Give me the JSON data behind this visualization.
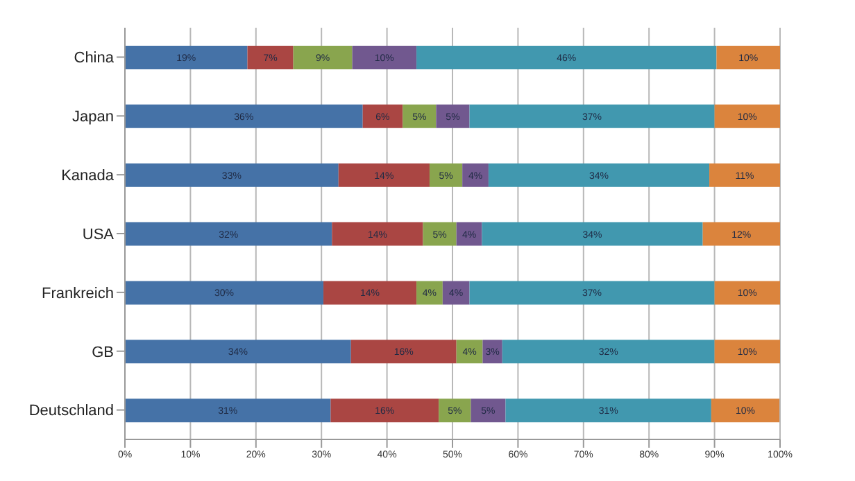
{
  "chart_data": {
    "type": "bar",
    "orientation": "horizontal",
    "stacked": true,
    "categories": [
      "China",
      "Japan",
      "Kanada",
      "USA",
      "Frankreich",
      "GB",
      "Deutschland"
    ],
    "series": [
      {
        "color": "#4572a7",
        "values": [
          18.7,
          36.3,
          32.6,
          31.6,
          30.3,
          34.5,
          31.4
        ],
        "value_labels": [
          "19%",
          "36%",
          "33%",
          "32%",
          "30%",
          "34%",
          "31%"
        ]
      },
      {
        "color": "#aa4643",
        "values": [
          7.0,
          6.1,
          13.9,
          13.9,
          14.2,
          16.1,
          16.5
        ],
        "value_labels": [
          "7%",
          "6%",
          "14%",
          "14%",
          "14%",
          "16%",
          "16%"
        ]
      },
      {
        "color": "#89a54e",
        "values": [
          9.0,
          5.1,
          5.0,
          5.1,
          4.0,
          4.0,
          4.9
        ],
        "value_labels": [
          "9%",
          "5%",
          "5%",
          "5%",
          "4%",
          "4%",
          "5%"
        ]
      },
      {
        "color": "#71588f",
        "values": [
          9.8,
          5.1,
          4.0,
          3.9,
          4.1,
          3.0,
          5.3
        ],
        "value_labels": [
          "10%",
          "5%",
          "4%",
          "4%",
          "4%",
          "3%",
          "5%"
        ]
      },
      {
        "color": "#4198af",
        "values": [
          45.8,
          37.4,
          33.7,
          33.7,
          37.4,
          32.4,
          31.4
        ],
        "value_labels": [
          "46%",
          "37%",
          "34%",
          "34%",
          "37%",
          "32%",
          "31%"
        ]
      },
      {
        "color": "#db843d",
        "values": [
          9.7,
          10.0,
          10.8,
          11.8,
          10.0,
          10.0,
          10.4
        ],
        "value_labels": [
          "10%",
          "10%",
          "11%",
          "12%",
          "10%",
          "10%",
          "10%"
        ]
      }
    ],
    "xlim": [
      0,
      100
    ],
    "xticks": [
      {
        "value": 0,
        "label": "0%"
      },
      {
        "value": 10,
        "label": "10%"
      },
      {
        "value": 20,
        "label": "20%"
      },
      {
        "value": 30,
        "label": "30%"
      },
      {
        "value": 40,
        "label": "40%"
      },
      {
        "value": 50,
        "label": "50%"
      },
      {
        "value": 60,
        "label": "60%"
      },
      {
        "value": 70,
        "label": "70%"
      },
      {
        "value": 80,
        "label": "80%"
      },
      {
        "value": 90,
        "label": "90%"
      },
      {
        "value": 100,
        "label": "100%"
      }
    ],
    "grid": "x",
    "legend": false
  }
}
